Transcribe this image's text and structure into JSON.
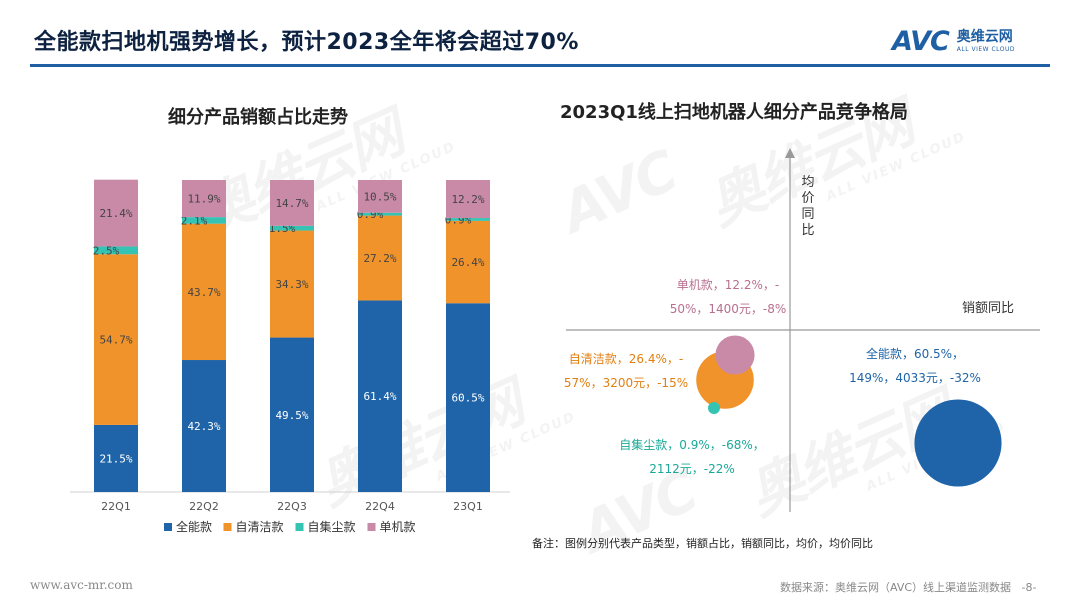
{
  "header": {
    "title": "全能款扫地机强势增长，预计2023全年将会超过70%",
    "logo_mark": "AVC",
    "logo_cn": "奥维云网",
    "logo_en": "ALL VIEW CLOUD"
  },
  "watermark": {
    "mark": "AVC",
    "cn": "奥维云网",
    "en": "ALL VIEW CLOUD"
  },
  "colors": {
    "full": "#1f64a8",
    "selfclean": "#f0932a",
    "dust": "#35c3b4",
    "single": "#c98aa8",
    "rule": "#1f5fa3"
  },
  "chart_data": [
    {
      "type": "bar",
      "stacked": true,
      "title": "细分产品销额占比走势",
      "categories": [
        "22Q1",
        "22Q2",
        "22Q3",
        "22Q4",
        "23Q1"
      ],
      "series": [
        {
          "name": "全能款",
          "key": "full",
          "values": [
            21.5,
            42.3,
            49.5,
            61.4,
            60.5
          ],
          "labels": [
            "21.5%",
            "42.3%",
            "49.5%",
            "61.4%",
            "60.5%"
          ]
        },
        {
          "name": "自清洁款",
          "key": "selfclean",
          "values": [
            54.7,
            43.7,
            34.3,
            27.2,
            26.4
          ],
          "labels": [
            "54.7%",
            "43.7%",
            "34.3%",
            "27.2%",
            "26.4%"
          ]
        },
        {
          "name": "自集尘款",
          "key": "dust",
          "values": [
            2.5,
            2.1,
            1.5,
            0.9,
            0.9
          ],
          "labels": [
            "2.5%",
            "2.1%",
            "1.5%",
            "0.9%",
            "0.9%"
          ]
        },
        {
          "name": "单机款",
          "key": "single",
          "values": [
            21.4,
            11.9,
            14.7,
            10.5,
            12.2
          ],
          "labels": [
            "21.4%",
            "11.9%",
            "14.7%",
            "10.5%",
            "12.2%"
          ]
        }
      ],
      "ylim": [
        0,
        100
      ]
    },
    {
      "type": "scatter",
      "subtype": "bubble",
      "title": "2023Q1线上扫地机器人细分产品竞争格局",
      "xlabel": "销额同比",
      "ylabel": "均价同比",
      "points": [
        {
          "name": "单机款",
          "key": "single",
          "share": 12.2,
          "sales_yoy": -50,
          "price": 1400,
          "price_yoy": -8,
          "label_lines": [
            "单机款，12.2%，-",
            "50%，1400元，-8%"
          ]
        },
        {
          "name": "自清洁款",
          "key": "selfclean",
          "share": 26.4,
          "sales_yoy": -57,
          "price": 3200,
          "price_yoy": -15,
          "label_lines": [
            "自清洁款，26.4%，-",
            "57%，3200元，-15%"
          ]
        },
        {
          "name": "自集尘款",
          "key": "dust",
          "share": 0.9,
          "sales_yoy": -68,
          "price": 2112,
          "price_yoy": -22,
          "label_lines": [
            "自集尘款，0.9%，-68%，",
            "2112元，-22%"
          ]
        },
        {
          "name": "全能款",
          "key": "full",
          "share": 60.5,
          "sales_yoy": 149,
          "price": 4033,
          "price_yoy": -32,
          "label_lines": [
            "全能款，60.5%，",
            "149%，4033元，-32%"
          ]
        }
      ]
    }
  ],
  "note": "备注：图例分别代表产品类型，销额占比，销额同比，均价，均价同比",
  "footer": {
    "website": "www.avc-mr.com",
    "source": "数据来源：奥维云网（AVC）线上渠道监测数据",
    "page": "-8-"
  }
}
